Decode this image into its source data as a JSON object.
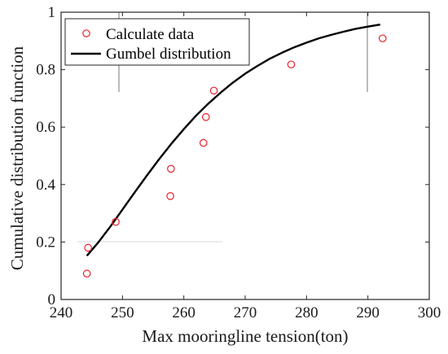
{
  "chart_data": {
    "type": "scatter",
    "title": "",
    "xlabel": "Max mooringline tension(ton)",
    "ylabel": "Cumulative distribution function",
    "xlim": [
      240,
      300
    ],
    "ylim": [
      0,
      1
    ],
    "xticks": [
      240,
      250,
      260,
      270,
      280,
      290,
      300
    ],
    "xtick_labels": [
      "240",
      "250",
      "260",
      "270",
      "280",
      "290",
      "300"
    ],
    "yticks": [
      0,
      0.2,
      0.4,
      0.6,
      0.8,
      1
    ],
    "ytick_labels": [
      "0",
      "0.2",
      "0.4",
      "0.6",
      "0.8",
      "1"
    ],
    "grid": false,
    "legend_position": "top-left",
    "series": [
      {
        "name": "Calculate data",
        "kind": "scatter",
        "marker": "open-circle",
        "color": "#e8202a",
        "points": [
          [
            244.2,
            0.09
          ],
          [
            244.4,
            0.18
          ],
          [
            248.9,
            0.27
          ],
          [
            257.8,
            0.36
          ],
          [
            257.9,
            0.455
          ],
          [
            263.2,
            0.545
          ],
          [
            263.6,
            0.635
          ],
          [
            264.9,
            0.727
          ],
          [
            277.5,
            0.818
          ],
          [
            292.4,
            0.909
          ]
        ]
      },
      {
        "name": "Gumbel distribution",
        "kind": "line",
        "color": "#000000",
        "points": [
          [
            244.2,
            0.152
          ],
          [
            246,
            0.197
          ],
          [
            248,
            0.253
          ],
          [
            250,
            0.313
          ],
          [
            252,
            0.373
          ],
          [
            254,
            0.432
          ],
          [
            256,
            0.489
          ],
          [
            258,
            0.543
          ],
          [
            260,
            0.593
          ],
          [
            262,
            0.64
          ],
          [
            264,
            0.682
          ],
          [
            266,
            0.72
          ],
          [
            268,
            0.755
          ],
          [
            270,
            0.786
          ],
          [
            272,
            0.813
          ],
          [
            274,
            0.838
          ],
          [
            276,
            0.859
          ],
          [
            278,
            0.878
          ],
          [
            280,
            0.894
          ],
          [
            282,
            0.909
          ],
          [
            284,
            0.921
          ],
          [
            286,
            0.932
          ],
          [
            288,
            0.942
          ],
          [
            290,
            0.95
          ],
          [
            292,
            0.957
          ]
        ]
      }
    ]
  }
}
